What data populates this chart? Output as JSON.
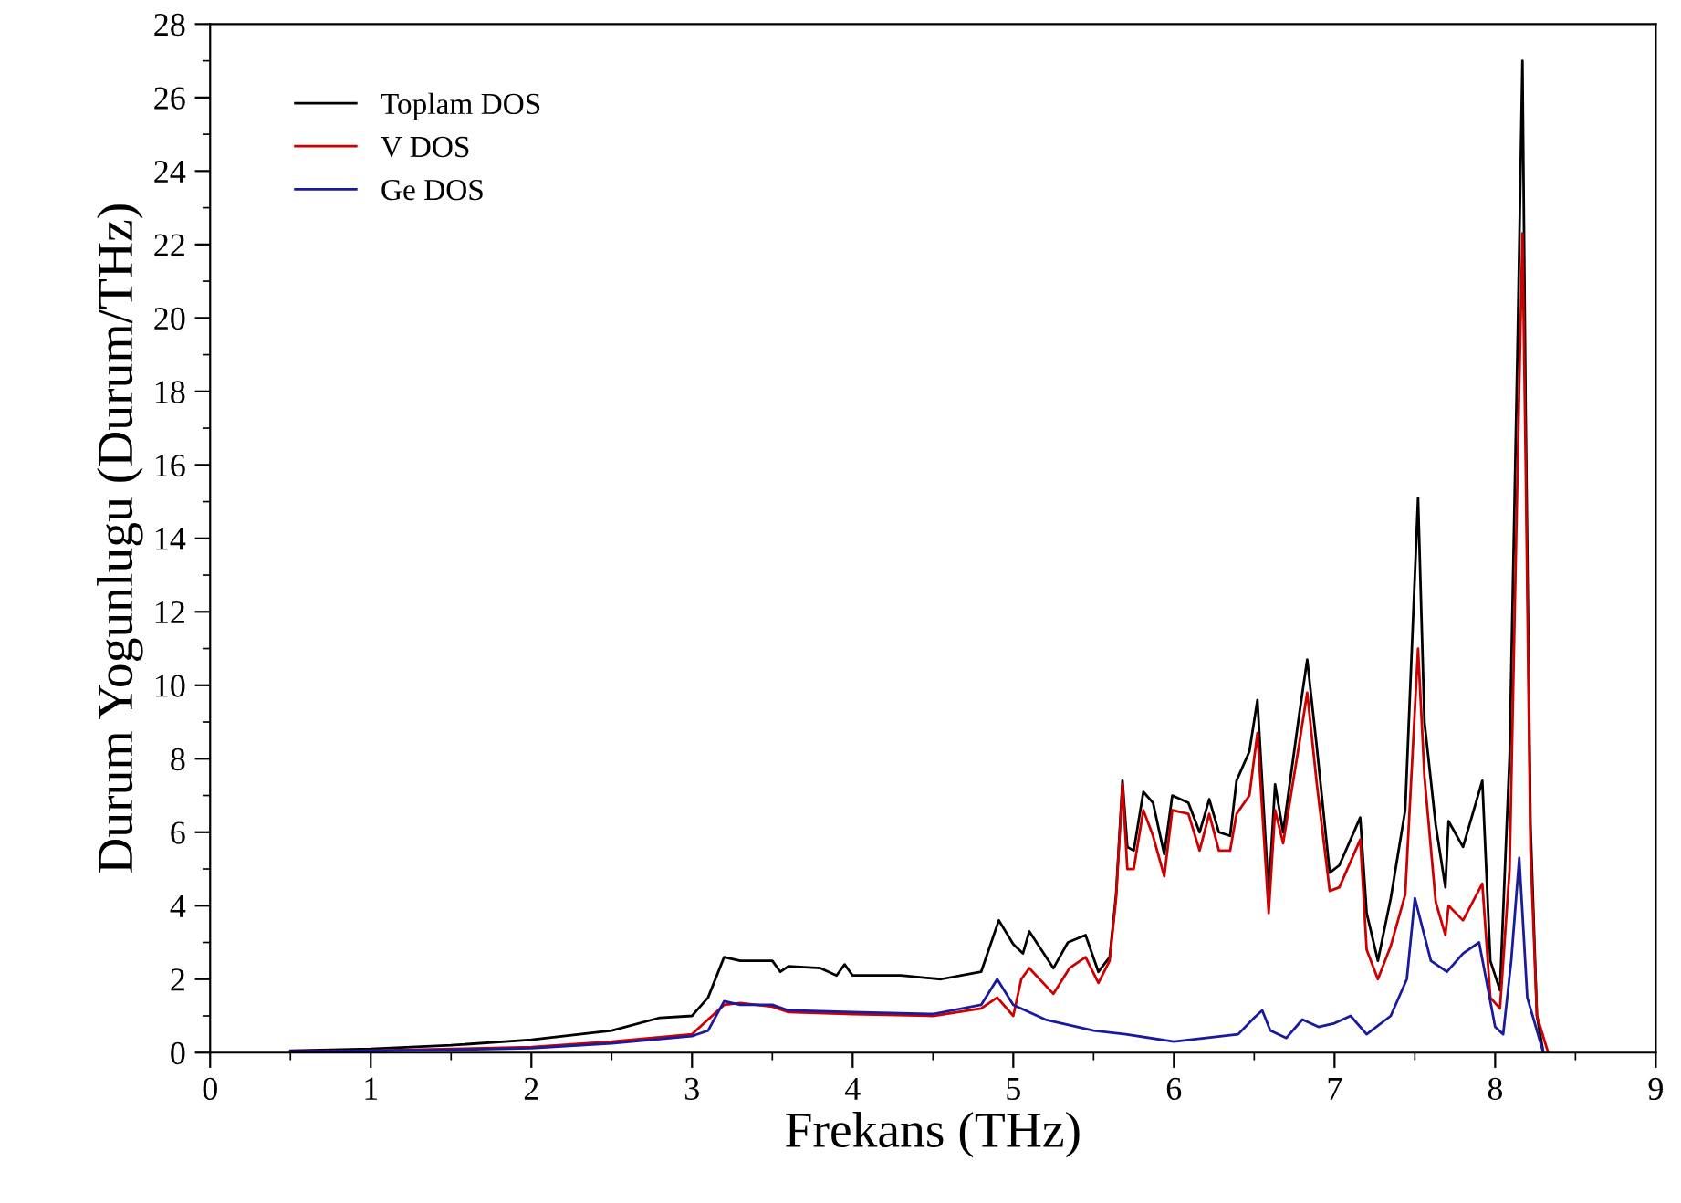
{
  "chart_data": {
    "type": "line",
    "xlabel": "Frekans (THz)",
    "ylabel": "Durum Yogunlugu (Durum/THz)",
    "xlim": [
      0,
      9
    ],
    "ylim": [
      0,
      28
    ],
    "xticks": [
      0,
      1,
      2,
      3,
      4,
      5,
      6,
      7,
      8,
      9
    ],
    "yticks": [
      0,
      2,
      4,
      6,
      8,
      10,
      12,
      14,
      16,
      18,
      20,
      22,
      24,
      26,
      28
    ],
    "grid": false,
    "legend": "top left",
    "marker": "none",
    "line_style": "solid",
    "series": [
      {
        "name": "Toplam DOS",
        "color": "#000000",
        "x": [
          0.5,
          1.0,
          1.5,
          2.0,
          2.5,
          2.8,
          3.0,
          3.1,
          3.2,
          3.3,
          3.5,
          3.55,
          3.6,
          3.8,
          3.9,
          3.95,
          4.0,
          4.3,
          4.55,
          4.8,
          4.91,
          5.0,
          5.06,
          5.1,
          5.25,
          5.34,
          5.45,
          5.53,
          5.6,
          5.64,
          5.68,
          5.71,
          5.75,
          5.81,
          5.87,
          5.94,
          5.99,
          6.09,
          6.16,
          6.22,
          6.28,
          6.35,
          6.39,
          6.47,
          6.52,
          6.59,
          6.63,
          6.68,
          6.78,
          6.83,
          6.89,
          6.97,
          7.03,
          7.16,
          7.2,
          7.27,
          7.35,
          7.44,
          7.52,
          7.56,
          7.63,
          7.69,
          7.71,
          7.8,
          7.92,
          7.97,
          8.03,
          8.09,
          8.14,
          8.17,
          8.19,
          8.22,
          8.26,
          8.3
        ],
        "values": [
          0.05,
          0.1,
          0.2,
          0.35,
          0.6,
          0.95,
          1.0,
          1.5,
          2.6,
          2.5,
          2.5,
          2.2,
          2.35,
          2.3,
          2.1,
          2.4,
          2.1,
          2.1,
          2.0,
          2.2,
          3.6,
          2.95,
          2.7,
          3.3,
          2.3,
          3.0,
          3.2,
          2.2,
          2.6,
          4.3,
          7.4,
          5.6,
          5.5,
          7.1,
          6.8,
          5.4,
          7.0,
          6.8,
          6.0,
          6.9,
          6.0,
          5.9,
          7.4,
          8.2,
          9.6,
          4.3,
          7.3,
          6.0,
          9.2,
          10.7,
          8.3,
          4.9,
          5.1,
          6.4,
          3.8,
          2.5,
          4.2,
          6.6,
          15.1,
          9.0,
          6.2,
          4.5,
          6.3,
          5.6,
          7.4,
          2.5,
          1.7,
          8.1,
          19.4,
          27.0,
          17.5,
          6.2,
          1.0,
          0
        ]
      },
      {
        "name": "V DOS",
        "color": "#cc0000",
        "x": [
          0.5,
          1.0,
          1.5,
          2.0,
          2.5,
          3.0,
          3.2,
          3.3,
          3.5,
          3.6,
          4.0,
          4.5,
          4.8,
          4.9,
          5.0,
          5.05,
          5.1,
          5.25,
          5.35,
          5.45,
          5.53,
          5.6,
          5.64,
          5.68,
          5.71,
          5.75,
          5.81,
          5.87,
          5.94,
          5.99,
          6.09,
          6.16,
          6.22,
          6.28,
          6.35,
          6.39,
          6.47,
          6.52,
          6.59,
          6.63,
          6.68,
          6.78,
          6.83,
          6.89,
          6.97,
          7.03,
          7.16,
          7.2,
          7.27,
          7.35,
          7.44,
          7.52,
          7.56,
          7.63,
          7.69,
          7.71,
          7.8,
          7.92,
          7.97,
          8.03,
          8.09,
          8.14,
          8.17,
          8.19,
          8.22,
          8.26,
          8.33
        ],
        "values": [
          0.03,
          0.05,
          0.1,
          0.15,
          0.3,
          0.5,
          1.3,
          1.35,
          1.25,
          1.1,
          1.05,
          1.0,
          1.2,
          1.5,
          1.0,
          2.0,
          2.3,
          1.6,
          2.3,
          2.6,
          1.9,
          2.5,
          4.2,
          7.3,
          5.0,
          5.0,
          6.6,
          5.9,
          4.8,
          6.6,
          6.5,
          5.5,
          6.5,
          5.5,
          5.5,
          6.5,
          7.0,
          8.7,
          3.8,
          6.6,
          5.7,
          8.4,
          9.8,
          7.3,
          4.4,
          4.5,
          5.8,
          2.8,
          2.0,
          2.9,
          4.3,
          11.0,
          7.5,
          4.1,
          3.2,
          4.0,
          3.6,
          4.6,
          1.5,
          1.2,
          5.0,
          16,
          22.3,
          16,
          5.5,
          1.0,
          0
        ]
      },
      {
        "name": "Ge DOS",
        "color": "#1a1aa0",
        "x": [
          0.5,
          1.0,
          1.5,
          2.0,
          2.5,
          3.0,
          3.1,
          3.2,
          3.3,
          3.5,
          3.6,
          4.0,
          4.5,
          4.8,
          4.9,
          5.0,
          5.2,
          5.5,
          5.7,
          6.0,
          6.2,
          6.4,
          6.5,
          6.55,
          6.6,
          6.7,
          6.8,
          6.9,
          7.0,
          7.1,
          7.2,
          7.35,
          7.45,
          7.5,
          7.6,
          7.7,
          7.8,
          7.9,
          8.0,
          8.05,
          8.1,
          8.15,
          8.2,
          8.3
        ],
        "values": [
          0.02,
          0.05,
          0.08,
          0.12,
          0.25,
          0.45,
          0.6,
          1.4,
          1.3,
          1.3,
          1.15,
          1.1,
          1.05,
          1.3,
          2.0,
          1.3,
          0.9,
          0.6,
          0.5,
          0.3,
          0.4,
          0.5,
          0.95,
          1.15,
          0.6,
          0.4,
          0.9,
          0.7,
          0.8,
          1.0,
          0.5,
          1.0,
          2.0,
          4.2,
          2.5,
          2.2,
          2.7,
          3.0,
          0.7,
          0.5,
          2.5,
          5.3,
          1.5,
          0
        ]
      }
    ]
  }
}
